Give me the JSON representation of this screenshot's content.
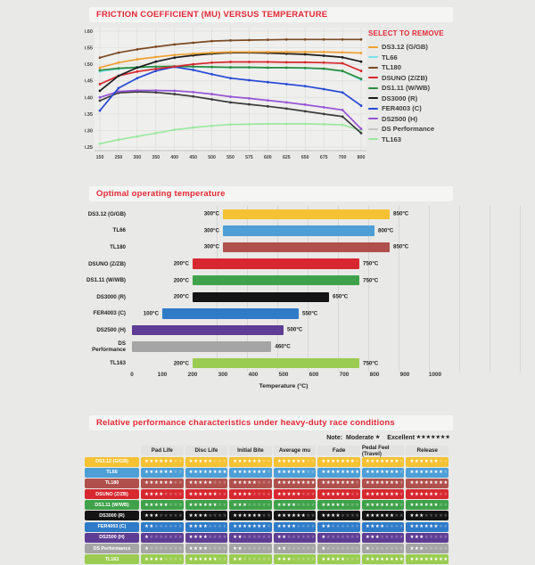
{
  "page": {
    "background": "#e9e9e7",
    "accent_red": "#e42837"
  },
  "section1": {
    "title": "FRICTION COEFFICIENT (MU) VERSUS TEMPERATURE"
  },
  "legend": {
    "header": "SELECT TO REMOVE",
    "items": [
      {
        "label": "DS3.12 (G/GB)",
        "color": "#f0a030"
      },
      {
        "label": "TL66",
        "color": "#7ae0ea"
      },
      {
        "label": "TL180",
        "color": "#7b4a23"
      },
      {
        "label": "DSUNO (Z/ZB)",
        "color": "#d8262c"
      },
      {
        "label": "DS1.11 (W/WB)",
        "color": "#2e8b3d"
      },
      {
        "label": "DS3000 (R)",
        "color": "#1c1c1c"
      },
      {
        "label": "FER4003 (C)",
        "color": "#2749d6"
      },
      {
        "label": "DS2500 (H)",
        "color": "#9656d6"
      },
      {
        "label": "DS Performance",
        "color": "#c4c4c4"
      },
      {
        "label": "TL163",
        "color": "#9ce8a0"
      }
    ]
  },
  "section2": {
    "title": "Optimal operating temperature"
  },
  "section3": {
    "title": "Relative performance characteristics under heavy-duty race conditions",
    "note": {
      "prefix": "Note:",
      "moderate_label": "Moderate",
      "moderate_stars": 1,
      "excellent_label": "Excellent",
      "excellent_stars": 7
    }
  },
  "chart_data": [
    {
      "type": "line",
      "title": "FRICTION COEFFICIENT (MU) VERSUS TEMPERATURE",
      "x_categories": [
        "150",
        "250",
        "300",
        "350",
        "400",
        "450",
        "500",
        "550",
        "575",
        "600",
        "625",
        "650",
        "675",
        "700",
        "800"
      ],
      "ylim": [
        0.25,
        0.6
      ],
      "yticks": [
        "0.60",
        "0.55",
        "0.50",
        "0.45",
        "0.40",
        "0.35",
        "0.30",
        "0.25"
      ],
      "grid": true,
      "legend_position": "right",
      "series": [
        {
          "name": "TL163",
          "color": "#9ce8a0",
          "values": [
            0.26,
            0.272,
            0.282,
            0.292,
            0.302,
            0.309,
            0.314,
            0.318,
            0.319,
            0.32,
            0.32,
            0.32,
            0.319,
            0.317,
            0.3
          ]
        },
        {
          "name": "TL66",
          "color": "#7ae0ea",
          "values": [
            0.478,
            0.486,
            0.49,
            0.492,
            0.493,
            0.492,
            0.491,
            0.49,
            0.49,
            0.489,
            0.489,
            0.488,
            0.486,
            0.479,
            0.453
          ]
        },
        {
          "name": "DS Performance",
          "color": "#3c3c3c",
          "values": [
            0.39,
            0.414,
            0.417,
            0.415,
            0.41,
            0.403,
            0.394,
            0.385,
            0.379,
            0.373,
            0.366,
            0.358,
            0.35,
            0.342,
            0.292
          ]
        },
        {
          "name": "DS2500 (H)",
          "color": "#9656d6",
          "values": [
            0.4,
            0.418,
            0.421,
            0.421,
            0.42,
            0.416,
            0.41,
            0.402,
            0.397,
            0.391,
            0.385,
            0.378,
            0.37,
            0.362,
            0.305
          ]
        },
        {
          "name": "FER4003 (C)",
          "color": "#2749d6",
          "values": [
            0.36,
            0.428,
            0.458,
            0.48,
            0.492,
            0.483,
            0.47,
            0.458,
            0.452,
            0.446,
            0.44,
            0.434,
            0.425,
            0.415,
            0.375
          ]
        },
        {
          "name": "DS1.11 (W/WB)",
          "color": "#2e8b3d",
          "values": [
            0.482,
            0.488,
            0.491,
            0.493,
            0.494,
            0.493,
            0.492,
            0.491,
            0.491,
            0.49,
            0.49,
            0.489,
            0.487,
            0.48,
            0.456
          ]
        },
        {
          "name": "DSUNO (Z/ZB)",
          "color": "#d8262c",
          "values": [
            0.44,
            0.465,
            0.478,
            0.486,
            0.493,
            0.5,
            0.505,
            0.507,
            0.507,
            0.507,
            0.506,
            0.506,
            0.505,
            0.503,
            0.48
          ]
        },
        {
          "name": "DS3000 (R)",
          "color": "#1c1c1c",
          "values": [
            0.42,
            0.465,
            0.49,
            0.508,
            0.52,
            0.527,
            0.532,
            0.535,
            0.535,
            0.534,
            0.532,
            0.53,
            0.526,
            0.521,
            0.508
          ]
        },
        {
          "name": "DS3.12 (G/GB)",
          "color": "#f0a030",
          "values": [
            0.49,
            0.505,
            0.515,
            0.522,
            0.528,
            0.532,
            0.535,
            0.537,
            0.537,
            0.537,
            0.537,
            0.537,
            0.537,
            0.536,
            0.534
          ]
        },
        {
          "name": "TL180",
          "color": "#7b4a23",
          "values": [
            0.52,
            0.535,
            0.545,
            0.553,
            0.56,
            0.565,
            0.57,
            0.572,
            0.573,
            0.574,
            0.575,
            0.575,
            0.575,
            0.575,
            0.575
          ]
        }
      ]
    },
    {
      "type": "bar",
      "orientation": "horizontal",
      "title": "Optimal operating temperature",
      "xlabel": "Temperature (°C)",
      "xlim": [
        0,
        1000
      ],
      "xticks": [
        "0",
        "100",
        "200",
        "300",
        "400",
        "500",
        "600",
        "700",
        "800",
        "900",
        "1000"
      ],
      "bars": [
        {
          "label": "DS3.12 (G/GB)",
          "color": "#f5c233",
          "start": 300,
          "end": 850,
          "start_label": "300°C",
          "end_label": "850°C"
        },
        {
          "label": "TL66",
          "color": "#4d9fd6",
          "start": 300,
          "end": 800,
          "start_label": "300°C",
          "end_label": "800°C"
        },
        {
          "label": "TL180",
          "color": "#b0504c",
          "start": 300,
          "end": 850,
          "start_label": "300°C",
          "end_label": "850°C"
        },
        {
          "label": "DSUNO (Z/ZB)",
          "color": "#d7282f",
          "start": 200,
          "end": 750,
          "start_label": "200°C",
          "end_label": "750°C"
        },
        {
          "label": "DS1.11 (W/WB)",
          "color": "#3fa24a",
          "start": 200,
          "end": 750,
          "start_label": "200°C",
          "end_label": "750°C"
        },
        {
          "label": "DS3000 (R)",
          "color": "#141414",
          "start": 200,
          "end": 650,
          "start_label": "200°C",
          "end_label": "650°C"
        },
        {
          "label": "FER4003 (C)",
          "color": "#2f7bc8",
          "start": 100,
          "end": 550,
          "start_label": "100°C",
          "end_label": "550°C"
        },
        {
          "label": "DS2500 (H)",
          "color": "#5f3d94",
          "start": 0,
          "end": 500,
          "start_label": "",
          "end_label": "500°C"
        },
        {
          "label": "DS Performance",
          "color": "#a5a5a5",
          "start": 0,
          "end": 460,
          "start_label": "",
          "end_label": "460°C"
        },
        {
          "label": "TL163",
          "color": "#9acc51",
          "start": 200,
          "end": 750,
          "start_label": "200°C",
          "end_label": "750°C"
        }
      ]
    },
    {
      "type": "table",
      "title": "Relative performance characteristics under heavy-duty race conditions",
      "columns": [
        "Pad Life",
        "Disc Life",
        "Initial Bite",
        "Average mu",
        "Fade",
        "Pedal Feel (Travel)",
        "Release"
      ],
      "max_stars": 8,
      "rows": [
        {
          "label": "DS3.12 (G/GB)",
          "color": "#f5c233",
          "ratings": [
            6,
            5,
            6,
            6,
            7,
            7,
            6
          ]
        },
        {
          "label": "TL66",
          "color": "#4d9fd6",
          "ratings": [
            6,
            8,
            7,
            6,
            8,
            7,
            7
          ]
        },
        {
          "label": "TL180",
          "color": "#b0504c",
          "ratings": [
            6,
            5,
            5,
            8,
            7,
            7,
            8
          ]
        },
        {
          "label": "DSUNO (Z/ZB)",
          "color": "#d7282f",
          "ratings": [
            4,
            6,
            4,
            5,
            6,
            7,
            6
          ]
        },
        {
          "label": "DS1.11 (W/WB)",
          "color": "#3fa24a",
          "ratings": [
            5,
            6,
            3,
            4,
            5,
            7,
            6
          ]
        },
        {
          "label": "DS3000 (R)",
          "color": "#141414",
          "ratings": [
            3,
            4,
            6,
            6,
            4,
            6,
            3
          ]
        },
        {
          "label": "FER4003 (C)",
          "color": "#2f7bc8",
          "ratings": [
            2,
            4,
            7,
            4,
            2,
            4,
            6
          ]
        },
        {
          "label": "DS2500 (H)",
          "color": "#5f3d94",
          "ratings": [
            1,
            4,
            2,
            2,
            1,
            3,
            3
          ]
        },
        {
          "label": "DS Performance",
          "color": "#a5a5a5",
          "ratings": [
            1,
            4,
            2,
            2,
            1,
            1,
            3
          ]
        },
        {
          "label": "TL163",
          "color": "#9acc51",
          "ratings": [
            4,
            6,
            2,
            3,
            5,
            8,
            8
          ]
        }
      ]
    }
  ]
}
